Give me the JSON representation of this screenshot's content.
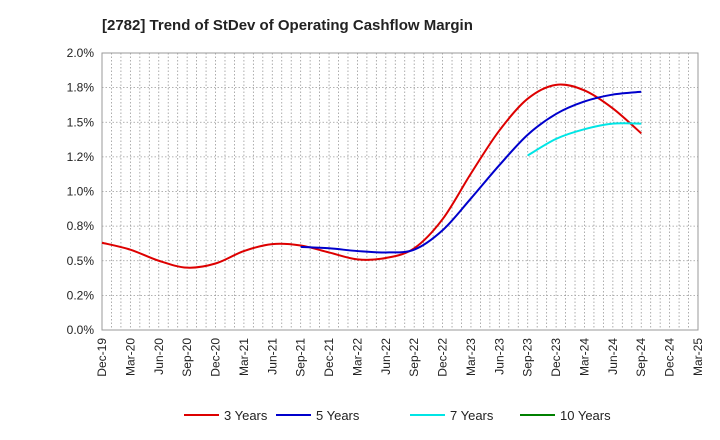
{
  "chart_data": {
    "type": "line",
    "title": "[2782]  Trend of StDev of Operating Cashflow Margin",
    "xlabel": "",
    "ylabel": "",
    "ylim": [
      0,
      2.0
    ],
    "yticks": [
      "0.0%",
      "0.2%",
      "0.5%",
      "0.8%",
      "1.0%",
      "1.2%",
      "1.5%",
      "1.8%",
      "2.0%"
    ],
    "categories": [
      "Dec-19",
      "Mar-20",
      "Jun-20",
      "Sep-20",
      "Dec-20",
      "Mar-21",
      "Jun-21",
      "Sep-21",
      "Dec-21",
      "Mar-22",
      "Jun-22",
      "Sep-22",
      "Dec-22",
      "Mar-23",
      "Jun-23",
      "Sep-23",
      "Dec-23",
      "Mar-24",
      "Jun-24",
      "Sep-24",
      "Dec-24",
      "Mar-25"
    ],
    "grid": true,
    "legend_position": "bottom",
    "series": [
      {
        "name": "3 Years",
        "color": "#dd0000",
        "values": [
          0.63,
          0.58,
          0.5,
          0.45,
          0.48,
          0.57,
          0.62,
          0.61,
          0.56,
          0.51,
          0.52,
          0.59,
          0.8,
          1.13,
          1.44,
          1.67,
          1.77,
          1.73,
          1.6,
          1.42,
          null,
          null
        ]
      },
      {
        "name": "5 Years",
        "color": "#0000cc",
        "values": [
          null,
          null,
          null,
          null,
          null,
          null,
          null,
          0.6,
          0.59,
          0.57,
          0.56,
          0.58,
          0.72,
          0.95,
          1.19,
          1.41,
          1.56,
          1.65,
          1.7,
          1.72,
          null,
          null
        ]
      },
      {
        "name": "7 Years",
        "color": "#00e5e5",
        "values": [
          null,
          null,
          null,
          null,
          null,
          null,
          null,
          null,
          null,
          null,
          null,
          null,
          null,
          null,
          null,
          1.26,
          1.38,
          1.45,
          1.49,
          1.49,
          null,
          null
        ]
      },
      {
        "name": "10 Years",
        "color": "#008000",
        "values": [
          null,
          null,
          null,
          null,
          null,
          null,
          null,
          null,
          null,
          null,
          null,
          null,
          null,
          null,
          null,
          null,
          null,
          null,
          null,
          null,
          null,
          null
        ]
      }
    ]
  }
}
